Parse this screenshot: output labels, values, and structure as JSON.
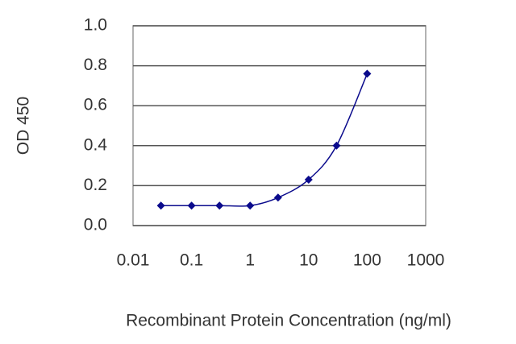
{
  "chart_data": {
    "type": "line",
    "xlabel": "Recombinant Protein Concentration (ng/ml)",
    "ylabel": "OD 450",
    "x": [
      0.03,
      0.1,
      0.3,
      1,
      3,
      10,
      30,
      100
    ],
    "series": [
      {
        "color": "#0a0a8c",
        "values": [
          0.1,
          0.1,
          0.1,
          0.1,
          0.14,
          0.23,
          0.4,
          0.76
        ]
      }
    ],
    "xscale": "log",
    "xlim": [
      0.01,
      1000
    ],
    "xticks": [
      0.01,
      0.1,
      1,
      10,
      100,
      1000
    ],
    "ylim": [
      0,
      1
    ],
    "yticks": [
      {
        "value": 0,
        "label": "0.0"
      },
      {
        "value": 0.2,
        "label": "0.2"
      },
      {
        "value": 0.4,
        "label": "0.4"
      },
      {
        "value": 0.6,
        "label": "0.6"
      },
      {
        "value": 0.8,
        "label": "0.8"
      },
      {
        "value": 1,
        "label": "1.0"
      }
    ],
    "grid": true
  }
}
